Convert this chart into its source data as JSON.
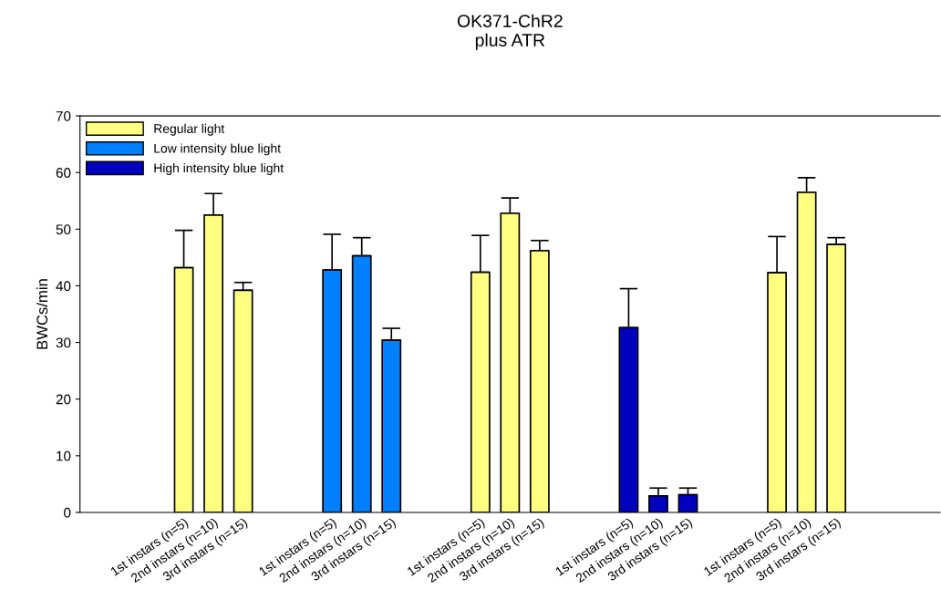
{
  "chart_data": {
    "type": "bar",
    "title": "OK371-ChR2\nplus ATR",
    "ylabel": "BWCs/min",
    "categories": [
      null,
      null,
      null,
      "1st instars (n=5)",
      "2nd instars (n=10)",
      "3rd instars (n=15)",
      null,
      null,
      "1st instars (n=5)",
      "2nd instars (n=10)",
      "3rd instars (n=15)",
      null,
      null,
      "1st instars (n=5)",
      "2nd instars (n=10)",
      "3rd instars (n=15)",
      null,
      null,
      "1st instars (n=5)",
      "2nd instars (n=10)",
      "3rd instars (n=15)",
      null,
      null,
      "1st instars (n=5)",
      "2nd instars (n=10)",
      "3rd instars (n=15)",
      null,
      null,
      null
    ],
    "series": [
      {
        "name": "Regular light",
        "color": "#ffff80",
        "values": [
          null,
          null,
          null,
          43.2,
          52.5,
          39.2,
          null,
          null,
          null,
          null,
          null,
          null,
          null,
          42.4,
          52.8,
          46.2,
          null,
          null,
          null,
          null,
          null,
          null,
          null,
          42.3,
          56.5,
          47.3,
          null,
          null,
          null
        ],
        "errors": [
          null,
          null,
          null,
          [
            43.2,
            49.8
          ],
          [
            52.5,
            56.3
          ],
          [
            39.2,
            40.6
          ],
          null,
          null,
          null,
          null,
          null,
          null,
          null,
          [
            42.4,
            48.9
          ],
          [
            52.8,
            55.5
          ],
          [
            46.2,
            48.0
          ],
          null,
          null,
          null,
          null,
          null,
          null,
          null,
          [
            42.3,
            48.7
          ],
          [
            56.5,
            59.1
          ],
          [
            47.3,
            48.5
          ],
          null,
          null,
          null
        ]
      },
      {
        "name": "Low intensity blue light",
        "color": "#0080ff",
        "values": [
          null,
          null,
          null,
          null,
          null,
          null,
          null,
          null,
          42.8,
          45.3,
          30.4,
          null,
          null,
          null,
          null,
          null,
          null,
          null,
          null,
          null,
          null,
          null,
          null,
          null,
          null,
          null,
          null,
          null,
          null
        ],
        "errors": [
          null,
          null,
          null,
          null,
          null,
          null,
          null,
          null,
          [
            42.8,
            49.1
          ],
          [
            45.3,
            48.5
          ],
          [
            30.4,
            32.5
          ],
          null,
          null,
          null,
          null,
          null,
          null,
          null,
          null,
          null,
          null,
          null,
          null,
          null,
          null,
          null,
          null,
          null,
          null
        ]
      },
      {
        "name": "High intensity blue light",
        "color": "#0000c0",
        "values": [
          null,
          null,
          null,
          null,
          null,
          null,
          null,
          null,
          null,
          null,
          null,
          null,
          null,
          null,
          null,
          null,
          null,
          null,
          32.6,
          2.9,
          3.1,
          null,
          null,
          null,
          null,
          null,
          null,
          null,
          null
        ],
        "errors": [
          null,
          null,
          null,
          null,
          null,
          null,
          null,
          null,
          null,
          null,
          null,
          null,
          null,
          null,
          null,
          null,
          null,
          null,
          [
            32.6,
            39.5
          ],
          [
            2.9,
            4.3
          ],
          [
            3.1,
            4.3
          ],
          null,
          null,
          null,
          null,
          null,
          null,
          null,
          null
        ]
      }
    ],
    "ylim": [
      0,
      70
    ],
    "yticks": [
      0,
      10,
      20,
      30,
      40,
      50,
      60,
      70
    ],
    "legend": "top left",
    "grid": false
  }
}
